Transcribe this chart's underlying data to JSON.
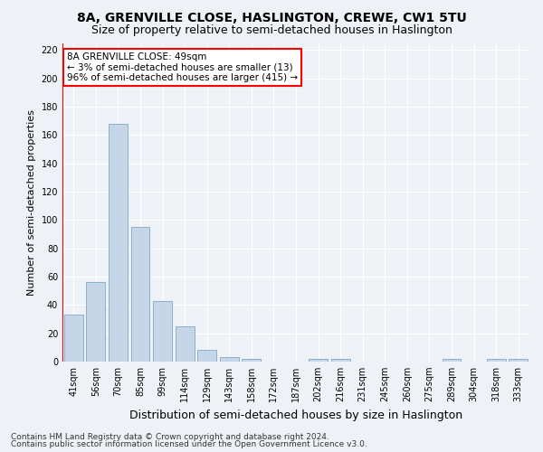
{
  "title": "8A, GRENVILLE CLOSE, HASLINGTON, CREWE, CW1 5TU",
  "subtitle": "Size of property relative to semi-detached houses in Haslington",
  "xlabel": "Distribution of semi-detached houses by size in Haslington",
  "ylabel": "Number of semi-detached properties",
  "bar_labels": [
    "41sqm",
    "56sqm",
    "70sqm",
    "85sqm",
    "99sqm",
    "114sqm",
    "129sqm",
    "143sqm",
    "158sqm",
    "172sqm",
    "187sqm",
    "202sqm",
    "216sqm",
    "231sqm",
    "245sqm",
    "260sqm",
    "275sqm",
    "289sqm",
    "304sqm",
    "318sqm",
    "333sqm"
  ],
  "bar_values": [
    33,
    56,
    168,
    95,
    43,
    25,
    8,
    3,
    2,
    0,
    0,
    2,
    2,
    0,
    0,
    0,
    0,
    2,
    0,
    2,
    2
  ],
  "bar_color": "#c5d6e8",
  "bar_edge_color": "#8ab0cc",
  "annotation_title": "8A GRENVILLE CLOSE: 49sqm",
  "annotation_line1": "← 3% of semi-detached houses are smaller (13)",
  "annotation_line2": "96% of semi-detached houses are larger (415) →",
  "annotation_box_color": "white",
  "annotation_box_edge_color": "red",
  "property_marker_color": "red",
  "ylim": [
    0,
    225
  ],
  "yticks": [
    0,
    20,
    40,
    60,
    80,
    100,
    120,
    140,
    160,
    180,
    200,
    220
  ],
  "footer_line1": "Contains HM Land Registry data © Crown copyright and database right 2024.",
  "footer_line2": "Contains public sector information licensed under the Open Government Licence v3.0.",
  "background_color": "#eef2f7",
  "grid_color": "#ffffff",
  "title_fontsize": 10,
  "subtitle_fontsize": 9,
  "axis_label_fontsize": 8,
  "tick_fontsize": 7,
  "footer_fontsize": 6.5
}
